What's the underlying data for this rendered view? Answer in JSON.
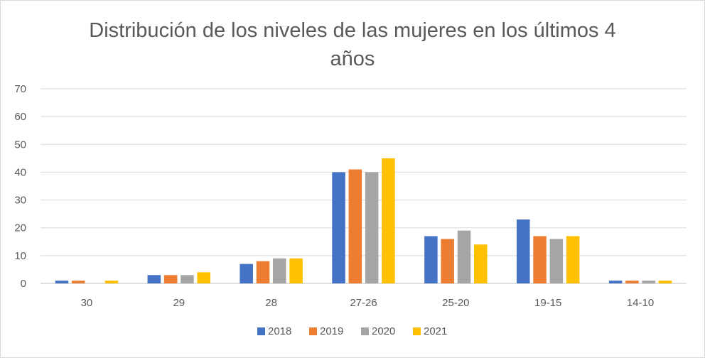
{
  "chart_data": {
    "type": "bar",
    "title_lines": [
      "Distribución de los niveles de las mujeres en los últimos 4",
      "años"
    ],
    "categories": [
      "30",
      "29",
      "28",
      "27-26",
      "25-20",
      "19-15",
      "14-10"
    ],
    "series": [
      {
        "name": "2018",
        "color": "#4472C4",
        "values": [
          1,
          3,
          7,
          40,
          17,
          23,
          1
        ]
      },
      {
        "name": "2019",
        "color": "#ED7D31",
        "values": [
          1,
          3,
          8,
          41,
          16,
          17,
          1
        ]
      },
      {
        "name": "2020",
        "color": "#A5A5A5",
        "values": [
          0,
          3,
          9,
          40,
          19,
          16,
          1
        ]
      },
      {
        "name": "2021",
        "color": "#FFC000",
        "values": [
          1,
          4,
          9,
          45,
          14,
          17,
          1
        ]
      }
    ],
    "ylim": [
      0,
      70
    ],
    "yticks": [
      0,
      10,
      20,
      30,
      40,
      50,
      60,
      70
    ],
    "grid": true,
    "legend_position": "bottom"
  }
}
